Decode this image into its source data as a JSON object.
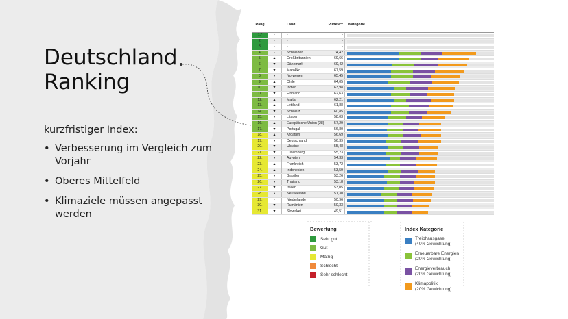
{
  "slide": {
    "title_line1": "Deutschland",
    "title_line2": "Ranking",
    "subtitle": "kurzfristiger Index:",
    "bullets": [
      "Verbesserung im Vergleich zum Vorjahr",
      "Oberes Mittelfeld",
      "Klimaziele müssen angepasst werden"
    ],
    "bullet_symbol": "•"
  },
  "table": {
    "headers": {
      "rank": "Rang",
      "trend": "",
      "country": "Land",
      "points": "Punkte**",
      "category": "Kategorie"
    },
    "rows": [
      {
        "rank": "1.*",
        "trend": "-",
        "country": "-",
        "points": "-",
        "bars": [
          0,
          0,
          0,
          0
        ]
      },
      {
        "rank": "2.",
        "trend": "-",
        "country": "-",
        "points": "-",
        "bars": [
          0,
          0,
          0,
          0
        ]
      },
      {
        "rank": "3.",
        "trend": "-",
        "country": "-",
        "points": "-",
        "bars": [
          0,
          0,
          0,
          0
        ]
      },
      {
        "rank": "4.",
        "trend": "-",
        "country": "Schweden",
        "points": "74,42",
        "bars": [
          35,
          15,
          15,
          23
        ]
      },
      {
        "rank": "5.",
        "trend": "▲",
        "country": "Großbritannien",
        "points": "69,66",
        "bars": [
          35,
          15,
          12,
          21
        ]
      },
      {
        "rank": "6.",
        "trend": "▼",
        "country": "Dänemark",
        "points": "69,42",
        "bars": [
          31,
          15,
          16,
          20
        ]
      },
      {
        "rank": "7.",
        "trend": "▼",
        "country": "Marokko",
        "points": "67,59",
        "bars": [
          30,
          15,
          15,
          20
        ]
      },
      {
        "rank": "8.",
        "trend": "▼",
        "country": "Norwegen",
        "points": "65,45",
        "bars": [
          30,
          15,
          12,
          20
        ]
      },
      {
        "rank": "9.",
        "trend": "▲",
        "country": "Chile",
        "points": "64,05",
        "bars": [
          28,
          15,
          15,
          18
        ]
      },
      {
        "rank": "10.",
        "trend": "▼",
        "country": "Indien",
        "points": "63,98",
        "bars": [
          32,
          8,
          15,
          19
        ]
      },
      {
        "rank": "11.",
        "trend": "▼",
        "country": "Finnland",
        "points": "62,63",
        "bars": [
          30,
          13,
          11,
          19
        ]
      },
      {
        "rank": "12.",
        "trend": "▲",
        "country": "Malta",
        "points": "62,21",
        "bars": [
          32,
          8,
          17,
          16
        ]
      },
      {
        "rank": "13.",
        "trend": "▲",
        "country": "Lettland",
        "points": "61,88",
        "bars": [
          30,
          12,
          14,
          16
        ]
      },
      {
        "rank": "14.",
        "trend": "▼",
        "country": "Schweiz",
        "points": "60,85",
        "bars": [
          30,
          12,
          12,
          17
        ]
      },
      {
        "rank": "15.",
        "trend": "▼",
        "country": "Litauen",
        "points": "58,03",
        "bars": [
          28,
          12,
          11,
          16
        ]
      },
      {
        "rank": "16.",
        "trend": "▲",
        "country": "Europäische Union (28)",
        "points": "57,29",
        "bars": [
          28,
          10,
          11,
          15
        ]
      },
      {
        "rank": "17.",
        "trend": "▼",
        "country": "Portugal",
        "points": "56,80",
        "bars": [
          27,
          11,
          10,
          16
        ]
      },
      {
        "rank": "18.",
        "trend": "▲",
        "country": "Kroatien",
        "points": "56,69",
        "bars": [
          28,
          10,
          12,
          14
        ]
      },
      {
        "rank": "19.",
        "trend": "▼",
        "country": "Deutschland",
        "points": "56,39",
        "bars": [
          26,
          11,
          11,
          16
        ]
      },
      {
        "rank": "20.",
        "trend": "▼",
        "country": "Ukraine",
        "points": "55,48",
        "bars": [
          28,
          10,
          11,
          13
        ]
      },
      {
        "rank": "21.",
        "trend": "▼",
        "country": "Luxemburg",
        "points": "55,23",
        "bars": [
          26,
          11,
          12,
          13
        ]
      },
      {
        "rank": "22.",
        "trend": "▼",
        "country": "Ägypten",
        "points": "54,33",
        "bars": [
          29,
          7,
          11,
          14
        ]
      },
      {
        "rank": "23.",
        "trend": "▲",
        "country": "Frankreich",
        "points": "53,72",
        "bars": [
          26,
          10,
          11,
          14
        ]
      },
      {
        "rank": "24.",
        "trend": "▲",
        "country": "Indonesien",
        "points": "53,59",
        "bars": [
          28,
          9,
          11,
          12
        ]
      },
      {
        "rank": "25.",
        "trend": "▼",
        "country": "Brasilien",
        "points": "53,26",
        "bars": [
          25,
          11,
          11,
          13
        ]
      },
      {
        "rank": "26.",
        "trend": "▼",
        "country": "Thailand",
        "points": "53,18",
        "bars": [
          27,
          9,
          10,
          14
        ]
      },
      {
        "rank": "27.",
        "trend": "▼",
        "country": "Italien",
        "points": "53,05",
        "bars": [
          25,
          10,
          11,
          13
        ]
      },
      {
        "rank": "28.",
        "trend": "▲",
        "country": "Neuseeland",
        "points": "51,30",
        "bars": [
          23,
          11,
          10,
          14
        ]
      },
      {
        "rank": "29.",
        "trend": "-",
        "country": "Niederlande",
        "points": "50,96",
        "bars": [
          25,
          9,
          11,
          12
        ]
      },
      {
        "rank": "30.",
        "trend": "▼",
        "country": "Rumänien",
        "points": "50,33",
        "bars": [
          25,
          9,
          10,
          12
        ]
      },
      {
        "rank": "31.",
        "trend": "▼",
        "country": "Slowakei",
        "points": "49,51",
        "bars": [
          25,
          9,
          10,
          11
        ]
      }
    ],
    "rank_colors": [
      "#2e9a3e",
      "#2e9a3e",
      "#2e9a3e",
      "#7dbb42",
      "#7dbb42",
      "#7dbb42",
      "#7dbb42",
      "#7dbb42",
      "#7dbb42",
      "#7dbb42",
      "#7dbb42",
      "#7dbb42",
      "#7dbb42",
      "#7dbb42",
      "#7dbb42",
      "#7dbb42",
      "#7dbb42",
      "#e6e833",
      "#e6e833",
      "#e6e833",
      "#e6e833",
      "#e6e833",
      "#e6e833",
      "#e6e833",
      "#e6e833",
      "#e6e833",
      "#e6e833",
      "#e6e833",
      "#e6e833",
      "#e6e833",
      "#e6e833"
    ],
    "bar_colors": [
      "#3a7fc2",
      "#8ac33a",
      "#7a52a3",
      "#f29a1d"
    ]
  },
  "legend_rating": {
    "title": "Bewertung",
    "items": [
      {
        "label": "Sehr gut",
        "color": "#2e9a3e"
      },
      {
        "label": "Gut",
        "color": "#7dbb42"
      },
      {
        "label": "Mäßig",
        "color": "#e6e833"
      },
      {
        "label": "Schlecht",
        "color": "#f0893a"
      },
      {
        "label": "Sehr schlecht",
        "color": "#c4202a"
      }
    ]
  },
  "legend_category": {
    "title": "Index Kategorie",
    "items": [
      {
        "line1": "Treibhausgase",
        "line2": "(40% Gewichtung)",
        "color": "#3a7fc2"
      },
      {
        "line1": "Erneuerbare Energien",
        "line2": "(20% Gewichtung)",
        "color": "#8ac33a"
      },
      {
        "line1": "Energieverbrauch",
        "line2": "(20% Gewichtung)",
        "color": "#7a52a3"
      },
      {
        "line1": "Klimapolitik",
        "line2": "(20% Gewichtung)",
        "color": "#f29a1d"
      }
    ]
  }
}
